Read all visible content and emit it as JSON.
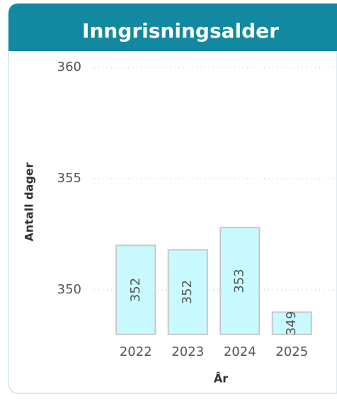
{
  "chart_data": {
    "type": "bar",
    "title": "Inngrisningsalder",
    "x_label": "År",
    "y_label": "Antall dager",
    "categories": [
      "2022",
      "2023",
      "2024",
      "2025"
    ],
    "values": [
      352.0,
      351.8,
      352.8,
      349.0
    ],
    "value_labels": [
      "352",
      "352",
      "353",
      "349"
    ],
    "color": "#c8f9ff",
    "ylim": [
      348,
      360
    ],
    "yticks": [
      350,
      355,
      360
    ],
    "grid": true
  }
}
